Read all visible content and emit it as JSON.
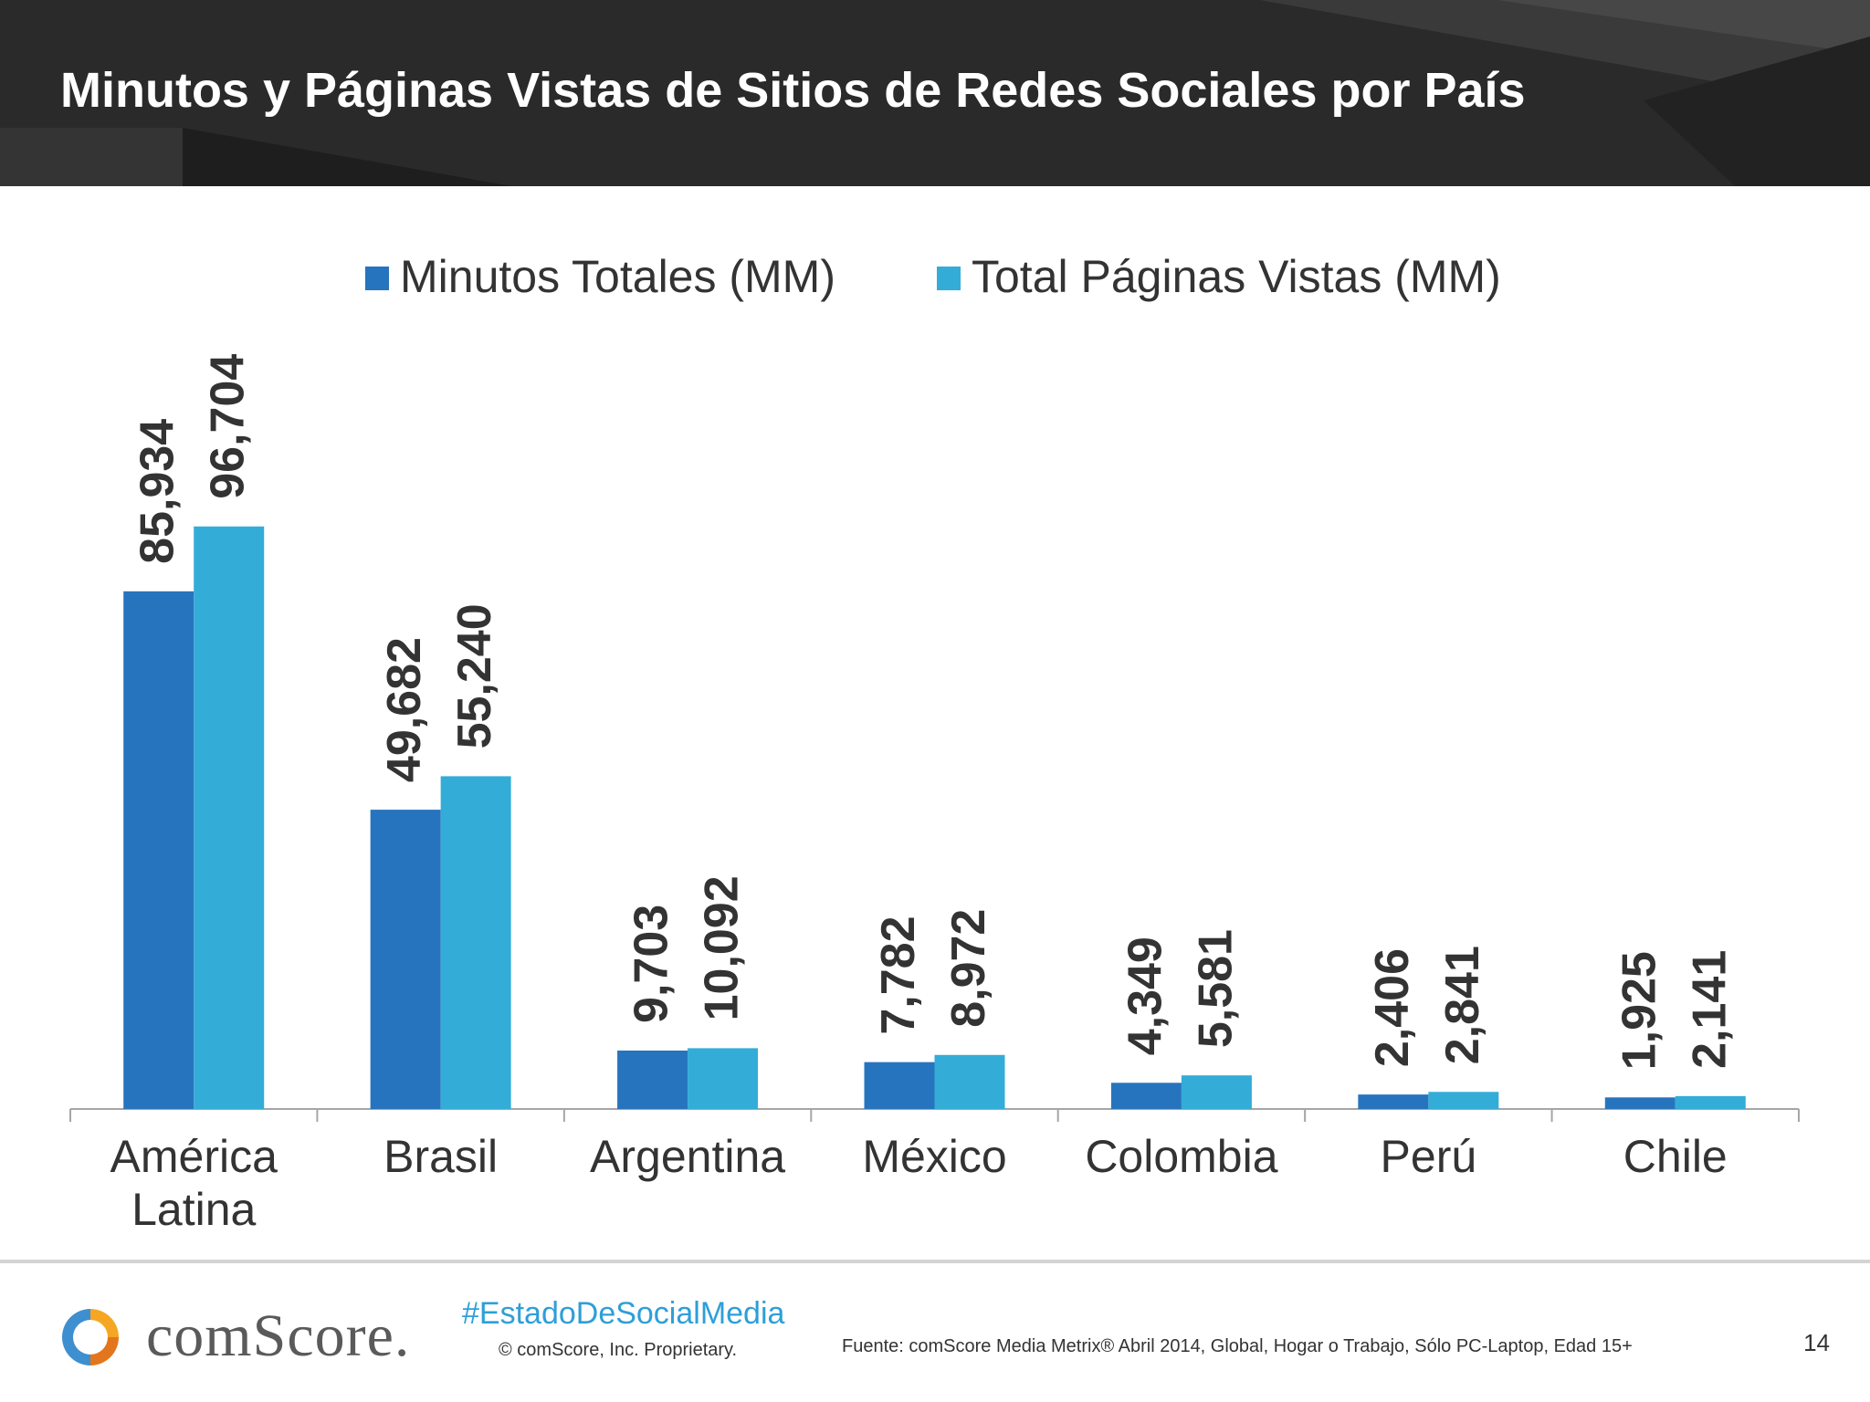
{
  "slide": {
    "title": "Minutos y Páginas Vistas de Sitios de Redes Sociales por País",
    "page_number": "14"
  },
  "chart_data": {
    "type": "bar",
    "categories": [
      [
        "América",
        "Latina"
      ],
      [
        "Brasil"
      ],
      [
        "Argentina"
      ],
      [
        "México"
      ],
      [
        "Colombia"
      ],
      [
        "Perú"
      ],
      [
        "Chile"
      ]
    ],
    "series": [
      {
        "name": "Minutos Totales (MM)",
        "color": "#2774be",
        "values": [
          85934,
          49682,
          9703,
          7782,
          4349,
          2406,
          1925
        ],
        "labels": [
          "85,934",
          "49,682",
          "9,703",
          "7,782",
          "4,349",
          "2,406",
          "1,925"
        ]
      },
      {
        "name": "Total Páginas Vistas (MM)",
        "color": "#34acd8",
        "values": [
          96704,
          55240,
          10092,
          8972,
          5581,
          2841,
          2141
        ],
        "labels": [
          "96,704",
          "55,240",
          "10,092",
          "8,972",
          "5,581",
          "2,841",
          "2,141"
        ]
      }
    ],
    "title": "",
    "xlabel": "",
    "ylabel": "",
    "ylim": [
      0,
      100000
    ],
    "grid": false,
    "legend_position": "top"
  },
  "footer": {
    "brand": "comScore.",
    "hashtag": "#EstadoDeSocialMedia",
    "copyright": "© comScore, Inc.     Proprietary.",
    "source": "Fuente: comScore Media Metrix® Abril 2014, Global, Hogar o Trabajo, Sólo PC-Laptop, Edad 15+"
  }
}
